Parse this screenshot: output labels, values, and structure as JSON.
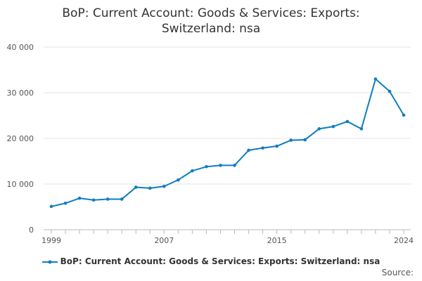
{
  "chart_data": {
    "type": "line",
    "title_line1": "BoP: Current Account: Goods & Services: Exports:",
    "title_line2": "Switzerland: nsa",
    "series": [
      {
        "name": "BoP: Current Account: Goods & Services: Exports: Switzerland: nsa",
        "color": "#0f7dbf",
        "x": [
          1999,
          2000,
          2001,
          2002,
          2003,
          2004,
          2005,
          2006,
          2007,
          2008,
          2009,
          2010,
          2011,
          2012,
          2013,
          2014,
          2015,
          2016,
          2017,
          2018,
          2019,
          2020,
          2021,
          2022,
          2023,
          2024
        ],
        "values": [
          5100,
          5800,
          6900,
          6500,
          6700,
          6700,
          9300,
          9100,
          9500,
          10900,
          12900,
          13800,
          14100,
          14100,
          17400,
          17900,
          18300,
          19600,
          19700,
          22100,
          22600,
          23700,
          22100,
          33000,
          30300,
          25100
        ]
      }
    ],
    "xticks": [
      1999,
      2007,
      2015,
      2024
    ],
    "xtick_labels": [
      "1999",
      "2007",
      "2015",
      "2024"
    ],
    "yticks": [
      0,
      10000,
      20000,
      30000,
      40000
    ],
    "ytick_labels": [
      "0",
      "10 000",
      "20 000",
      "30 000",
      "40 000"
    ],
    "ylim": [
      0,
      40000
    ],
    "xlim": [
      1999,
      2024
    ],
    "legend_position": "bottom",
    "source_label": "Source:"
  }
}
